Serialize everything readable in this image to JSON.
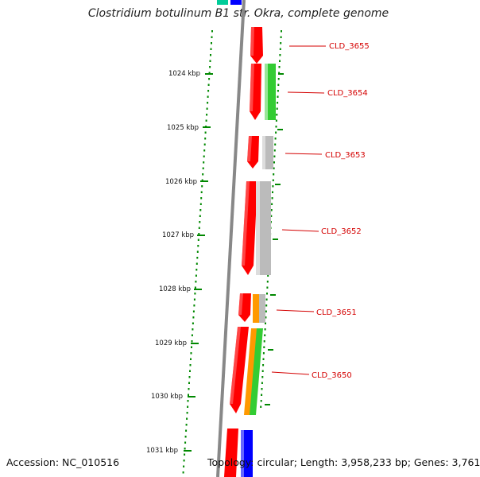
{
  "title": "Clostridium botulinum B1 str. Okra, complete genome",
  "footer": {
    "accession": "Accession: NC_010516",
    "topology": "Topology: circular; Length: 3,958,233 bp; Genes: 3,761"
  },
  "scale": {
    "unit": "kbp",
    "labels": [
      "1024 kbp",
      "1025 kbp",
      "1026 kbp",
      "1027 kbp",
      "1028 kbp",
      "1029 kbp",
      "1030 kbp",
      "1031 kbp"
    ]
  },
  "genes": [
    {
      "name": "CLD_3655"
    },
    {
      "name": "CLD_3654"
    },
    {
      "name": "CLD_3653"
    },
    {
      "name": "CLD_3652"
    },
    {
      "name": "CLD_3651"
    },
    {
      "name": "CLD_3650"
    }
  ],
  "colors": {
    "backbone": "#888888",
    "gene": "#ff0000",
    "green": "#33cc33",
    "gray": "#bbbbbb",
    "orange": "#ff9900",
    "blue": "#0000ff",
    "teal": "#00cc99",
    "scale_dots": "#008800",
    "label": "#d40000"
  }
}
